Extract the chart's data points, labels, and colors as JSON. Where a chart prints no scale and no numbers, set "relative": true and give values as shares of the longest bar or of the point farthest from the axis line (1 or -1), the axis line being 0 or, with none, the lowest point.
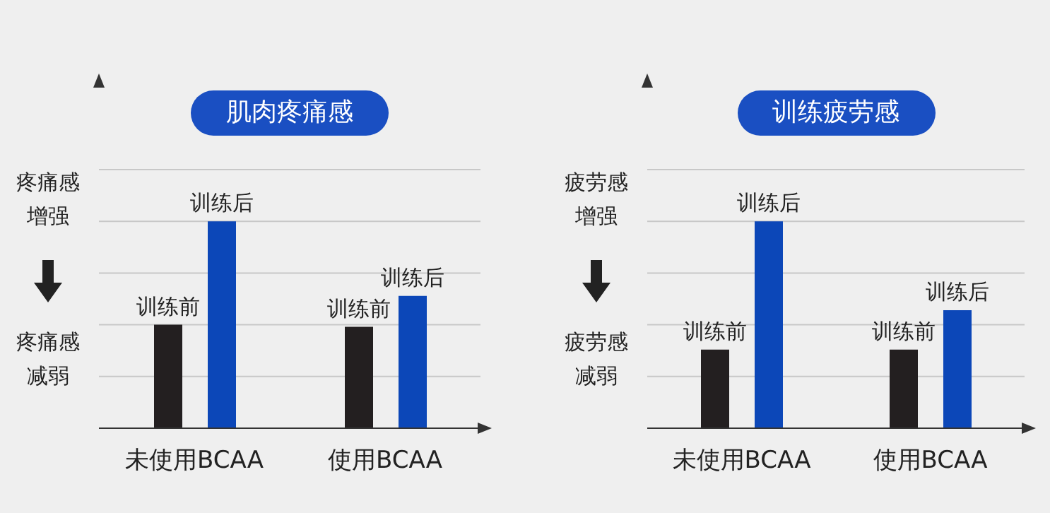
{
  "chart_data": [
    {
      "type": "bar",
      "title": "肌肉疼痛感",
      "categories": [
        "未使用BCAA",
        "使用BCAA"
      ],
      "relative": true,
      "grid": "y",
      "legend": false,
      "data_labels": false,
      "series": [
        {
          "name": "训练前",
          "color": "#231f20",
          "values": [
            0.5,
            0.49
          ]
        },
        {
          "name": "训练后",
          "color": "#0c47b8",
          "values": [
            1,
            0.64
          ]
        }
      ],
      "annotations": [
        "疼痛感增强",
        "疼痛感减弱"
      ]
    },
    {
      "type": "bar",
      "title": "训练疲劳感",
      "categories": [
        "未使用BCAA",
        "使用BCAA"
      ],
      "relative": true,
      "grid": "y",
      "legend": false,
      "data_labels": false,
      "series": [
        {
          "name": "训练前",
          "color": "#231f20",
          "values": [
            0.38,
            0.38
          ]
        },
        {
          "name": "训练后",
          "color": "#0c47b8",
          "values": [
            1,
            0.57
          ]
        }
      ],
      "annotations": [
        "疲劳感增强",
        "疲劳感减弱"
      ]
    }
  ]
}
